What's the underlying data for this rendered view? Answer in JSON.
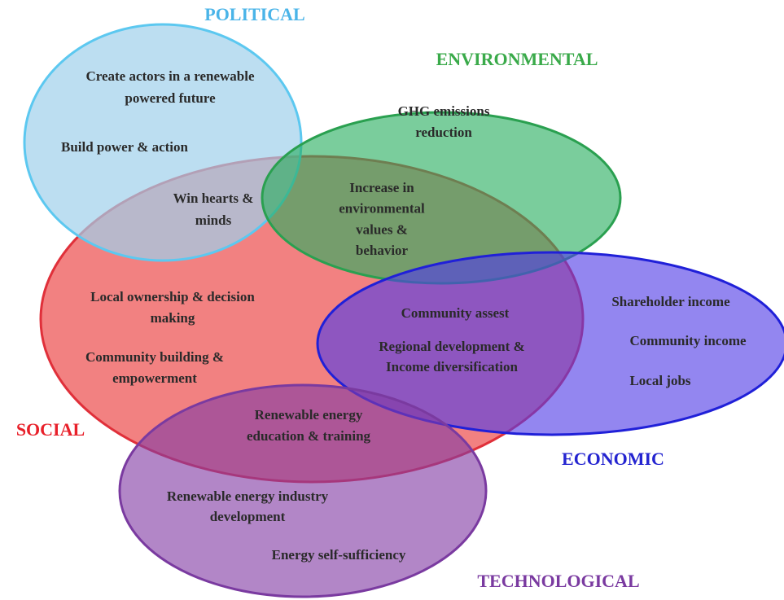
{
  "sets": [
    {
      "label": "POLITICAL"
    },
    {
      "label": "ENVIRONMENTAL"
    },
    {
      "label": "SOCIAL"
    },
    {
      "label": "ECONOMIC"
    },
    {
      "label": "TECHNOLOGICAL"
    }
  ],
  "items": [
    {
      "lines": [
        "Create actors in a renewable",
        "powered future"
      ]
    },
    {
      "lines": [
        "Build power & action"
      ]
    },
    {
      "lines": [
        "Win hearts &",
        "minds"
      ]
    },
    {
      "lines": [
        "GHG emissions",
        "reduction"
      ]
    },
    {
      "lines": [
        "Increase in",
        "environmental",
        "values &",
        "behavior"
      ]
    },
    {
      "lines": [
        "Local ownership & decision",
        "making"
      ]
    },
    {
      "lines": [
        "Community building &",
        "empowerment"
      ]
    },
    {
      "lines": [
        "Community assest"
      ]
    },
    {
      "lines": [
        "Regional development &",
        "Income diversification"
      ]
    },
    {
      "lines": [
        "Shareholder income"
      ]
    },
    {
      "lines": [
        "Community income"
      ]
    },
    {
      "lines": [
        "Local jobs"
      ]
    },
    {
      "lines": [
        "Renewable energy",
        "education & training"
      ]
    },
    {
      "lines": [
        "Renewable energy industry",
        "development"
      ]
    },
    {
      "lines": [
        "Energy self-sufficiency"
      ]
    }
  ]
}
